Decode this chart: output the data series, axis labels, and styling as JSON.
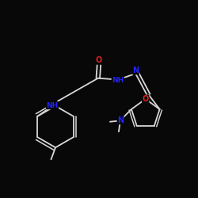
{
  "bg_color": "#080808",
  "bond_color": "#d8d8d8",
  "atom_colors": {
    "N": "#2222ff",
    "O": "#dd2222",
    "C": "#d8d8d8"
  },
  "bond_width": 1.3,
  "figsize": [
    2.5,
    2.5
  ],
  "dpi": 100
}
